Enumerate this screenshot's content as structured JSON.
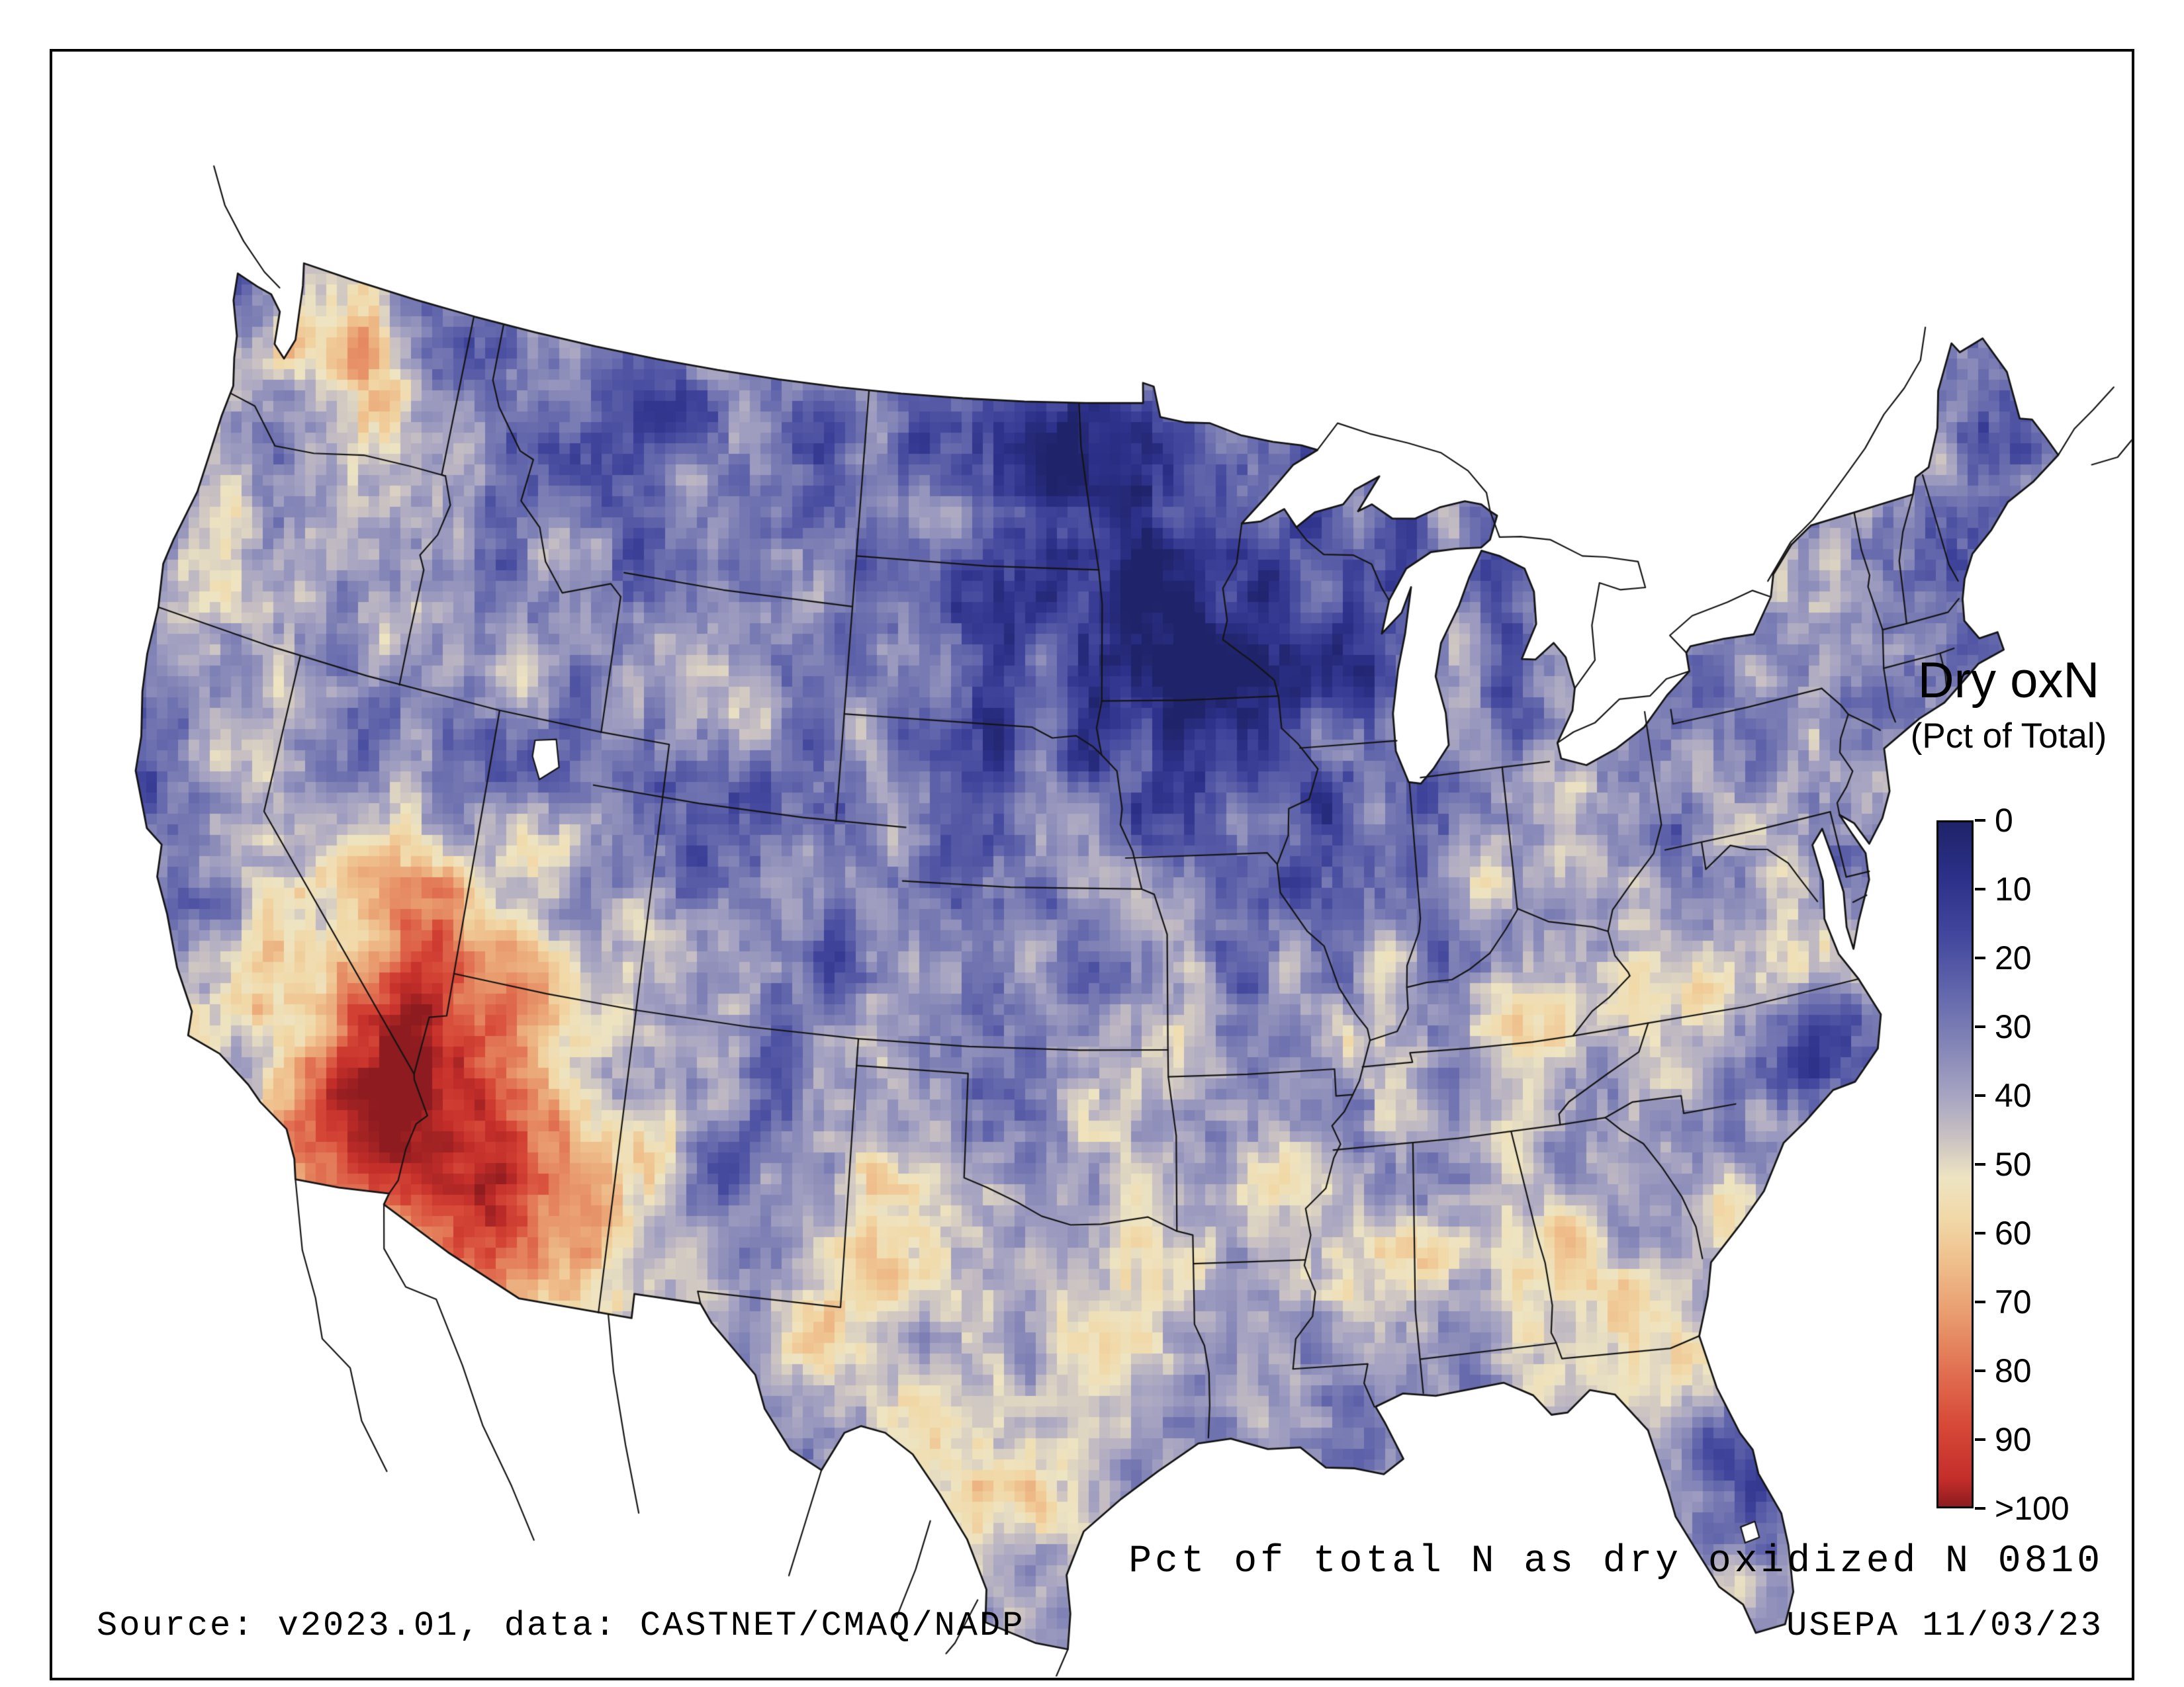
{
  "figure": {
    "background_color": "#ffffff",
    "border_color": "#000000",
    "line_color": "#141414"
  },
  "legend": {
    "title": "Dry oxN",
    "subtitle": "(Pct of Total)",
    "ticks": [
      "0",
      "10",
      "20",
      "30",
      "40",
      "50",
      "60",
      "70",
      "80",
      "90",
      ">100"
    ]
  },
  "caption": "Pct of total N as dry oxidized N 0810",
  "footer": {
    "source": "Source: v2023.01, data: CASTNET/CMAQ/NADP",
    "agency": "USEPA 11/03/23"
  },
  "chart_data": {
    "type": "heatmap",
    "title": "Dry oxN (Pct of Total)",
    "units": "percent of total N deposition occurring as dry oxidized N",
    "extent": {
      "west": -125,
      "east": -66.5,
      "south": 24.5,
      "north": 49.5
    },
    "value_range": [
      0,
      100
    ],
    "legend_position": "right",
    "colormap": [
      {
        "value": 0,
        "color": "#1f2369"
      },
      {
        "value": 8,
        "color": "#2c3088"
      },
      {
        "value": 16,
        "color": "#41459c"
      },
      {
        "value": 24,
        "color": "#5f63aa"
      },
      {
        "value": 32,
        "color": "#8183b6"
      },
      {
        "value": 40,
        "color": "#a7a4c2"
      },
      {
        "value": 46,
        "color": "#c9c1c2"
      },
      {
        "value": 52,
        "color": "#eee4c2"
      },
      {
        "value": 58,
        "color": "#f1d8a7"
      },
      {
        "value": 64,
        "color": "#efc08d"
      },
      {
        "value": 72,
        "color": "#e99c6f"
      },
      {
        "value": 80,
        "color": "#e17152"
      },
      {
        "value": 88,
        "color": "#d74938"
      },
      {
        "value": 96,
        "color": "#c42e2a"
      },
      {
        "value": 106,
        "color": "#8d1b1f"
      }
    ],
    "base_value": 37,
    "noise": {
      "coarse": 15,
      "fine": 9
    },
    "regions": [
      {
        "name": "minnesota-dakotas-iowa-low",
        "lon": -95.5,
        "lat": 45.8,
        "sigma_lon": 5.2,
        "sigma_lat": 2.9,
        "delta": -27
      },
      {
        "name": "iowa-illinois-wisconsin-low",
        "lon": -92.0,
        "lat": 42.6,
        "sigma_lon": 3.0,
        "sigma_lat": 2.2,
        "delta": -15
      },
      {
        "name": "red-river-valley-low",
        "lon": -97.3,
        "lat": 47.8,
        "sigma_lon": 1.8,
        "sigma_lat": 1.6,
        "delta": -12
      },
      {
        "name": "northern-rockies-low",
        "lon": -110.0,
        "lat": 45.5,
        "sigma_lon": 4.0,
        "sigma_lat": 2.8,
        "delta": -11
      },
      {
        "name": "colorado-rockies-low",
        "lon": -106.2,
        "lat": 39.3,
        "sigma_lon": 1.5,
        "sigma_lat": 2.0,
        "delta": -13
      },
      {
        "name": "arizona-high",
        "lon": -112.7,
        "lat": 33.9,
        "sigma_lon": 2.5,
        "sigma_lat": 2.4,
        "delta": 58
      },
      {
        "name": "southern-nevada-high",
        "lon": -116.0,
        "lat": 36.5,
        "sigma_lon": 1.7,
        "sigma_lat": 1.6,
        "delta": 36
      },
      {
        "name": "southeast-california-high",
        "lon": -116.5,
        "lat": 33.3,
        "sigma_lon": 1.5,
        "sigma_lat": 1.3,
        "delta": 32
      },
      {
        "name": "central-washington-high",
        "lon": -119.9,
        "lat": 47.3,
        "sigma_lon": 1.2,
        "sigma_lat": 0.9,
        "delta": 30
      },
      {
        "name": "puget-sound-high",
        "lon": -122.4,
        "lat": 47.6,
        "sigma_lon": 0.5,
        "sigma_lat": 0.45,
        "delta": 26
      },
      {
        "name": "western-oregon-high",
        "lon": -123.2,
        "lat": 44.5,
        "sigma_lon": 0.7,
        "sigma_lat": 1.6,
        "delta": 16
      },
      {
        "name": "snake-river-plain-high",
        "lon": -114.3,
        "lat": 43.0,
        "sigma_lon": 2.2,
        "sigma_lat": 1.0,
        "delta": 10
      },
      {
        "name": "southwest-utah-high",
        "lon": -113.0,
        "lat": 37.9,
        "sigma_lon": 1.4,
        "sigma_lat": 1.2,
        "delta": 16
      },
      {
        "name": "central-wyoming-high",
        "lon": -107.6,
        "lat": 43.2,
        "sigma_lon": 1.0,
        "sigma_lat": 0.8,
        "delta": 14
      },
      {
        "name": "great-salt-lake-low",
        "lon": -112.6,
        "lat": 41.2,
        "sigma_lon": 0.9,
        "sigma_lat": 0.8,
        "delta": -10
      },
      {
        "name": "northern-nevada-low",
        "lon": -117.3,
        "lat": 40.8,
        "sigma_lon": 1.8,
        "sigma_lat": 1.4,
        "delta": -8
      },
      {
        "name": "california-central-valley-cream",
        "lon": -119.8,
        "lat": 36.3,
        "sigma_lon": 1.2,
        "sigma_lat": 1.5,
        "delta": 12
      },
      {
        "name": "california-north-coast-low",
        "lon": -123.3,
        "lat": 40.0,
        "sigma_lon": 0.9,
        "sigma_lat": 1.8,
        "delta": -10
      },
      {
        "name": "eastern-north-carolina-low",
        "lon": -77.8,
        "lat": 35.3,
        "sigma_lon": 1.2,
        "sigma_lat": 0.95,
        "delta": -26
      },
      {
        "name": "south-texas-cream",
        "lon": -98.7,
        "lat": 29.3,
        "sigma_lon": 3.4,
        "sigma_lat": 2.4,
        "delta": 9
      },
      {
        "name": "west-texas-high",
        "lon": -102.6,
        "lat": 31.6,
        "sigma_lon": 1.8,
        "sigma_lat": 1.4,
        "delta": 12
      },
      {
        "name": "texas-panhandle-cream",
        "lon": -101.7,
        "lat": 34.0,
        "sigma_lon": 1.4,
        "sigma_lat": 1.2,
        "delta": 8
      },
      {
        "name": "southeast-cream",
        "lon": -85.6,
        "lat": 32.6,
        "sigma_lon": 4.2,
        "sigma_lat": 2.3,
        "delta": 9
      },
      {
        "name": "appalachia-cream",
        "lon": -82.6,
        "lat": 37.6,
        "sigma_lon": 2.6,
        "sigma_lat": 1.6,
        "delta": 8
      },
      {
        "name": "louisiana-coast-low",
        "lon": -90.3,
        "lat": 30.4,
        "sigma_lon": 1.0,
        "sigma_lat": 0.8,
        "delta": -16
      },
      {
        "name": "florida-east-coast-low",
        "lon": -80.6,
        "lat": 27.6,
        "sigma_lon": 0.8,
        "sigma_lat": 1.6,
        "delta": -13
      },
      {
        "name": "maine-low",
        "lon": -69.6,
        "lat": 45.6,
        "sigma_lon": 1.6,
        "sigma_lat": 1.6,
        "delta": -8
      },
      {
        "name": "nebraska-kansas-low",
        "lon": -99.8,
        "lat": 39.8,
        "sigma_lon": 3.0,
        "sigma_lat": 2.2,
        "delta": -7
      },
      {
        "name": "rio-grande-valley-low",
        "lon": -106.2,
        "lat": 34.3,
        "sigma_lon": 0.8,
        "sigma_lat": 1.8,
        "delta": -8
      },
      {
        "name": "northern-michigan-low",
        "lon": -84.8,
        "lat": 44.3,
        "sigma_lon": 1.6,
        "sigma_lat": 1.6,
        "delta": -7
      },
      {
        "name": "northeast-inland-low",
        "lon": -74.8,
        "lat": 42.8,
        "sigma_lon": 2.6,
        "sigma_lat": 2.0,
        "delta": -6
      },
      {
        "name": "virginia-piedmont-cream",
        "lon": -78.8,
        "lat": 37.8,
        "sigma_lon": 1.6,
        "sigma_lat": 1.1,
        "delta": 7
      },
      {
        "name": "georgia-coast-cream",
        "lon": -81.6,
        "lat": 31.8,
        "sigma_lon": 1.3,
        "sigma_lat": 0.9,
        "delta": 8
      }
    ],
    "readings": [
      {
        "area": "Upper Midwest (MN / IA / eastern Dakotas)",
        "approx_pct": "5-20"
      },
      {
        "area": "Arizona / southern Nevada / SE California",
        "approx_pct": "80-100"
      },
      {
        "area": "Central Washington spots",
        "approx_pct": "60-90"
      },
      {
        "area": "Eastern North Carolina spot",
        "approx_pct": "10-20"
      },
      {
        "area": "Southeast (GA / AL / TN)",
        "approx_pct": "40-55"
      },
      {
        "area": "Northeast",
        "approx_pct": "30-45"
      },
      {
        "area": "Texas",
        "approx_pct": "35-55"
      },
      {
        "area": "Rocky Mountains",
        "approx_pct": "20-40"
      }
    ]
  }
}
